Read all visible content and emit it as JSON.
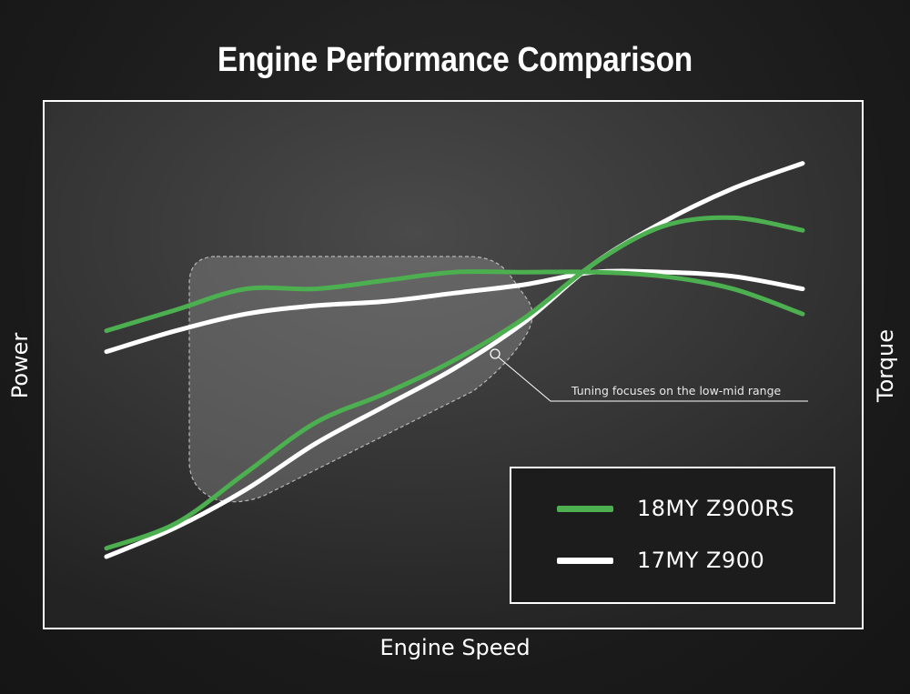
{
  "chart_data": {
    "type": "line",
    "title": "Engine Performance Comparison",
    "xlabel": "Engine Speed",
    "ylabel_left": "Power",
    "ylabel_right": "Torque",
    "annotation": "Tuning focuses on the low-mid range",
    "grid": false,
    "legend_position": "bottom-right",
    "x": [
      0,
      10,
      20,
      30,
      40,
      50,
      60,
      70,
      80,
      90,
      100
    ],
    "series": [
      {
        "name": "18MY Z900RS",
        "metric": "Power",
        "color": "#4caf50",
        "values": [
          2,
          8,
          20,
          32,
          39,
          47,
          57,
          70,
          79,
          81,
          78
        ]
      },
      {
        "name": "17MY Z900",
        "metric": "Power",
        "color": "#ffffff",
        "values": [
          0,
          7,
          16,
          27,
          36,
          45,
          56,
          70,
          80,
          88,
          94
        ]
      },
      {
        "name": "18MY Z900RS",
        "metric": "Torque",
        "color": "#4caf50",
        "values": [
          54,
          59,
          64,
          64,
          66,
          68,
          68,
          68,
          67,
          64,
          58
        ]
      },
      {
        "name": "17MY Z900",
        "metric": "Torque",
        "color": "#ffffff",
        "values": [
          49,
          54,
          58,
          60,
          61,
          63,
          65,
          68,
          68,
          67,
          64
        ]
      }
    ],
    "legend": [
      {
        "label": "18MY Z900RS",
        "color": "#4caf50"
      },
      {
        "label": "17MY Z900",
        "color": "#ffffff"
      }
    ]
  }
}
